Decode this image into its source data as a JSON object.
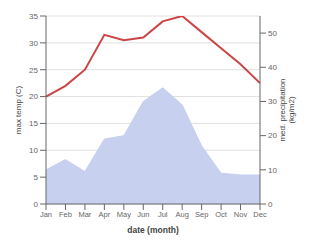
{
  "chart_data": {
    "type": "line",
    "categories": [
      "Jan",
      "Feb",
      "Mar",
      "Apr",
      "May",
      "Jun",
      "Jul",
      "Aug",
      "Sep",
      "Oct",
      "Nov",
      "Dec"
    ],
    "series": [
      {
        "type": "area",
        "axis": "y2",
        "color": "#c8d0f0",
        "values": [
          10,
          13,
          9.5,
          19,
          20,
          30,
          34,
          29,
          17,
          9,
          8.5,
          8.5
        ]
      },
      {
        "type": "line",
        "color": "#cc4444",
        "values": [
          20,
          22,
          25,
          31.5,
          30.5,
          31,
          34,
          35,
          32,
          29,
          26,
          22.5
        ]
      }
    ],
    "xlabel": "date (month)",
    "ylabel": "max temp (C)",
    "y2label": "med. precipitation\n(kg/m2)",
    "ylim": [
      0,
      35
    ],
    "yticks": [
      0,
      5,
      10,
      15,
      20,
      25,
      30,
      35
    ],
    "y2lim": [
      0,
      55
    ],
    "y2ticks": [
      0,
      10,
      20,
      30,
      40,
      50
    ],
    "grid": true
  }
}
